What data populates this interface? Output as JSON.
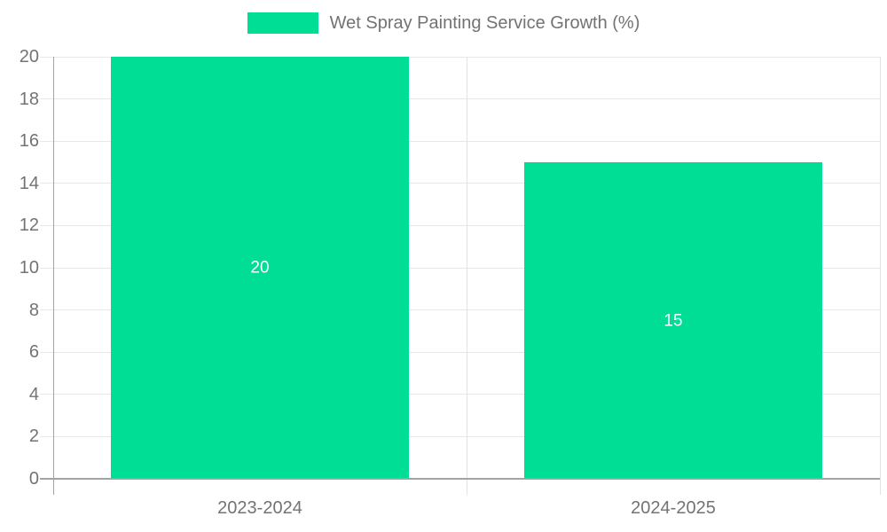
{
  "chart_data": {
    "type": "bar",
    "title": "",
    "legend": "Wet Spray Painting Service Growth (%)",
    "legend_position": "top-center",
    "categories": [
      "2023-2024",
      "2024-2025"
    ],
    "values": [
      20,
      15
    ],
    "data_labels": [
      "20",
      "15"
    ],
    "xlabel": "",
    "ylabel": "",
    "ylim": [
      0,
      20
    ],
    "ytick_step": 2,
    "yticks": [
      0,
      2,
      4,
      6,
      8,
      10,
      12,
      14,
      16,
      18,
      20
    ],
    "grid": "horizontal-on-with-category-separators",
    "bar_width_ratio": 0.72,
    "bar_color": "#00DE96",
    "value_label_color": "#FFFFFF",
    "axis_text_color": "#737373",
    "gridline_color": "#E8E8E8",
    "separator_color": "#E3E3E3",
    "axis_line_color": "#A3A3A3",
    "background_color": "#FFFFFF"
  }
}
